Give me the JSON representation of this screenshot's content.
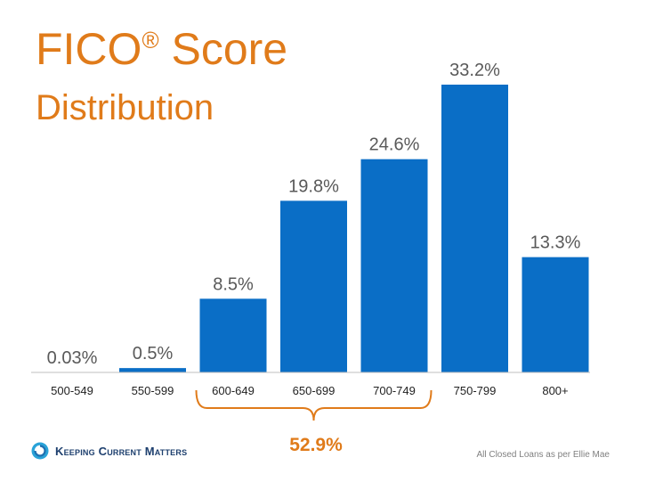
{
  "title": {
    "main": "FICO",
    "mark": "®",
    "main_rest": " Score",
    "sub": "Distribution"
  },
  "chart_data": {
    "type": "bar",
    "categories": [
      "500-549",
      "550-599",
      "600-649",
      "650-699",
      "700-749",
      "750-799",
      "800+"
    ],
    "values": [
      0.03,
      0.5,
      8.5,
      19.8,
      24.6,
      33.2,
      13.3
    ],
    "value_labels": [
      "0.03%",
      "0.5%",
      "8.5%",
      "19.8%",
      "24.6%",
      "33.2%",
      "13.3%"
    ],
    "ylim": [
      0,
      35
    ],
    "grid": false,
    "bar_color": "#0a6ec6",
    "bracket": {
      "from": "600-649",
      "to": "700-749",
      "label": "52.9%",
      "color": "#e07b1a"
    }
  },
  "footer": {
    "logo_text": "Keeping Current Matters",
    "source": "All Closed Loans as per Ellie Mae"
  },
  "colors": {
    "accent": "#e07b1a",
    "bar": "#0a6ec6",
    "logo": "#1d3f6e"
  }
}
